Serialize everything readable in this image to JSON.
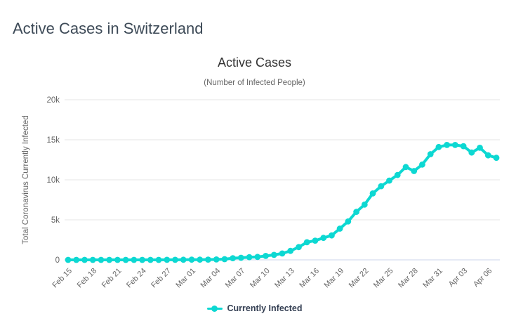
{
  "page": {
    "title": "Active Cases in Switzerland"
  },
  "chart": {
    "title": "Active Cases",
    "subtitle": "(Number of Infected People)",
    "y_axis_title": "Total Coronavirus Currently Infected",
    "legend": [
      {
        "label": "Currently Infected",
        "color": "#0dd8d2"
      }
    ]
  },
  "chart_data": {
    "type": "line",
    "title": "Active Cases",
    "subtitle": "(Number of Infected People)",
    "xlabel": "",
    "ylabel": "Total Coronavirus Currently Infected",
    "ylim": [
      0,
      20000
    ],
    "ytick_values": [
      0,
      5000,
      10000,
      15000,
      20000
    ],
    "ytick_labels": [
      "0",
      "5k",
      "10k",
      "15k",
      "20k"
    ],
    "xtick_every": 3,
    "grid": "horizontal",
    "legend_position": "bottom",
    "categories": [
      "Feb 15",
      "Feb 16",
      "Feb 17",
      "Feb 18",
      "Feb 19",
      "Feb 20",
      "Feb 21",
      "Feb 22",
      "Feb 23",
      "Feb 24",
      "Feb 25",
      "Feb 26",
      "Feb 27",
      "Feb 28",
      "Feb 29",
      "Mar 01",
      "Mar 02",
      "Mar 03",
      "Mar 04",
      "Mar 05",
      "Mar 06",
      "Mar 07",
      "Mar 08",
      "Mar 09",
      "Mar 10",
      "Mar 11",
      "Mar 12",
      "Mar 13",
      "Mar 14",
      "Mar 15",
      "Mar 16",
      "Mar 17",
      "Mar 18",
      "Mar 19",
      "Mar 20",
      "Mar 21",
      "Mar 22",
      "Mar 23",
      "Mar 24",
      "Mar 25",
      "Mar 26",
      "Mar 27",
      "Mar 28",
      "Mar 29",
      "Mar 30",
      "Mar 31",
      "Apr 01",
      "Apr 02",
      "Apr 03",
      "Apr 04",
      "Apr 05",
      "Apr 06",
      "Apr 07"
    ],
    "series": [
      {
        "name": "Currently Infected",
        "color": "#0dd8d2",
        "values": [
          0,
          0,
          0,
          0,
          0,
          0,
          0,
          0,
          0,
          0,
          1,
          1,
          8,
          8,
          18,
          24,
          30,
          37,
          55,
          90,
          210,
          265,
          330,
          370,
          490,
          620,
          800,
          1120,
          1600,
          2200,
          2400,
          2750,
          3050,
          3900,
          4800,
          6000,
          6900,
          8300,
          9200,
          9900,
          10600,
          11600,
          11100,
          11900,
          13200,
          14100,
          14350,
          14350,
          14200,
          13400,
          14000,
          13050,
          12750
        ]
      }
    ]
  },
  "colors": {
    "series": "#0dd8d2",
    "grid": "#e6e6e6",
    "axis_line": "#ccd6eb",
    "tick_text": "#666666",
    "title_text": "#333333",
    "page_title": "#3d4a57",
    "legend_text": "#333e52",
    "background": "#ffffff"
  }
}
